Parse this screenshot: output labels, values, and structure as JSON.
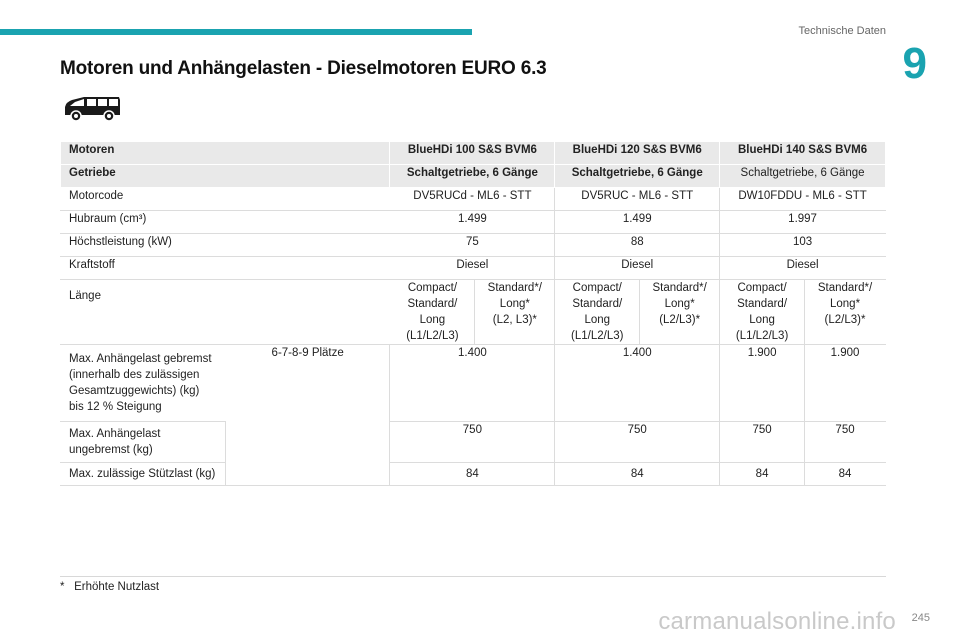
{
  "header": {
    "section": "Technische Daten",
    "chapter": "9"
  },
  "title": "Motoren und Anhängelasten - Dieselmotoren EURO 6.3",
  "icons": {
    "vehicle": "van-icon"
  },
  "table": {
    "head": [
      "Motoren",
      "BlueHDi 100 S&S BVM6",
      "BlueHDi 120 S&S BVM6",
      "BlueHDi 140 S&S BVM6"
    ],
    "gearbox": [
      "Getriebe",
      "Schaltgetriebe, 6 Gänge",
      "Schaltgetriebe, 6 Gänge",
      "Schaltgetriebe, 6 Gänge"
    ],
    "rows": [
      [
        "Motorcode",
        "DV5RUCd - ML6 - STT",
        "DV5RUC - ML6 - STT",
        "DW10FDDU - ML6 - STT"
      ],
      [
        "Hubraum (cm³)",
        "1.499",
        "1.499",
        "1.997"
      ],
      [
        "Höchstleistung (kW)",
        "75",
        "88",
        "103"
      ],
      [
        "Kraftstoff",
        "Diesel",
        "Diesel",
        "Diesel"
      ]
    ],
    "length": {
      "label": "Länge",
      "cells": [
        [
          "Compact/",
          "Standard/",
          "Long",
          "(L1/L2/L3)"
        ],
        [
          "Standard*/",
          "Long*",
          "(L2, L3)*"
        ],
        [
          "Compact/",
          "Standard/",
          "Long",
          "(L1/L2/L3)"
        ],
        [
          "Standard*/",
          "Long*",
          "(L2/L3)*"
        ],
        [
          "Compact/",
          "Standard/",
          "Long",
          "(L1/L2/L3)"
        ],
        [
          "Standard*/",
          "Long*",
          "(L2/L3)*"
        ]
      ]
    },
    "seats": "6-7-8-9 Plätze",
    "braked": {
      "label": [
        "Max. Anhängelast gebremst",
        "(innerhalb des zulässigen",
        "Gesamtzuggewichts) (kg)",
        "bis 12 % Steigung"
      ],
      "values": [
        "1.400",
        "1.400",
        "1.900",
        "1.900"
      ]
    },
    "unbraked": {
      "label": [
        "Max. Anhängelast",
        "ungebremst (kg)"
      ],
      "values": [
        "750",
        "750",
        "750",
        "750"
      ]
    },
    "nose": {
      "label": "Max. zulässige Stützlast (kg)",
      "values": [
        "84",
        "84",
        "84",
        "84"
      ]
    }
  },
  "footnote": {
    "mark": "*",
    "text": "Erhöhte Nutzlast"
  },
  "page_number": "245",
  "watermark": "carmanualsonline.info"
}
